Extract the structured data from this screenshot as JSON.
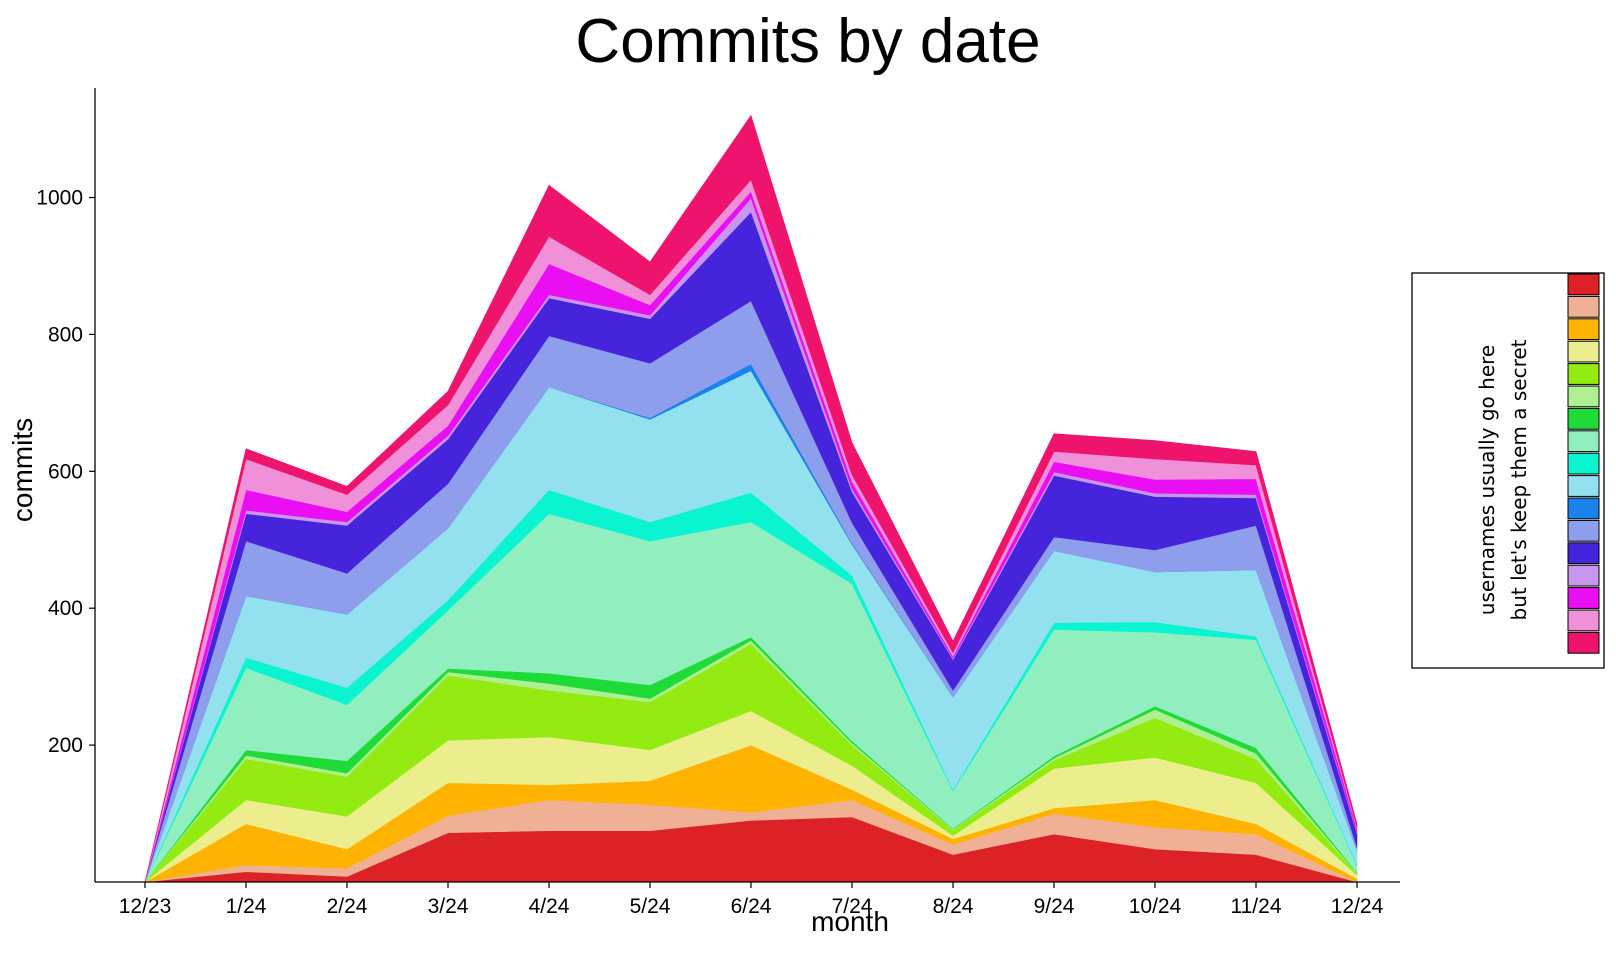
{
  "chart_data": {
    "type": "area",
    "title": "Commits by date",
    "xlabel": "month",
    "ylabel": "commits",
    "categories": [
      "12/23",
      "1/24",
      "2/24",
      "3/24",
      "4/24",
      "5/24",
      "6/24",
      "7/24",
      "8/24",
      "9/24",
      "10/24",
      "11/24",
      "12/24"
    ],
    "ylim": [
      0,
      1160
    ],
    "yticks": [
      200,
      400,
      600,
      800,
      1000
    ],
    "ytick_labels": [
      "200",
      "400",
      "600",
      "800",
      "1000"
    ],
    "grid": false,
    "stacked": true,
    "legend": {
      "title_line1": "usernames usually go here",
      "title_line2": "but let's keep them a secret",
      "position": "right"
    },
    "series": [
      {
        "color": "#dc2226",
        "values": [
          0,
          15,
          8,
          72,
          75,
          75,
          90,
          95,
          40,
          70,
          48,
          40,
          0
        ]
      },
      {
        "color": "#efb093",
        "values": [
          0,
          10,
          12,
          25,
          45,
          38,
          12,
          25,
          15,
          30,
          32,
          30,
          0
        ]
      },
      {
        "color": "#ffb300",
        "values": [
          0,
          60,
          28,
          48,
          22,
          35,
          98,
          15,
          8,
          8,
          40,
          15,
          5
        ]
      },
      {
        "color": "#ecee8d",
        "values": [
          0,
          35,
          48,
          62,
          70,
          45,
          50,
          35,
          5,
          58,
          62,
          60,
          5
        ]
      },
      {
        "color": "#94eb11",
        "values": [
          0,
          60,
          58,
          95,
          68,
          70,
          98,
          30,
          8,
          12,
          58,
          35,
          2
        ]
      },
      {
        "color": "#aef091",
        "values": [
          0,
          5,
          5,
          5,
          10,
          5,
          5,
          3,
          1,
          3,
          12,
          8,
          1
        ]
      },
      {
        "color": "#1fdb38",
        "values": [
          0,
          8,
          18,
          5,
          15,
          20,
          5,
          3,
          1,
          3,
          5,
          8,
          1
        ]
      },
      {
        "color": "#91eebe",
        "values": [
          0,
          120,
          82,
          85,
          233,
          210,
          168,
          230,
          55,
          185,
          108,
          158,
          10
        ]
      },
      {
        "color": "#0af4d2",
        "values": [
          0,
          15,
          25,
          15,
          35,
          28,
          43,
          12,
          2,
          10,
          15,
          5,
          2
        ]
      },
      {
        "color": "#93e1ee",
        "values": [
          0,
          90,
          107,
          105,
          150,
          150,
          178,
          45,
          135,
          105,
          73,
          97,
          20
        ]
      },
      {
        "color": "#1b82ec",
        "values": [
          0,
          0,
          0,
          0,
          0,
          2,
          10,
          2,
          0,
          0,
          0,
          0,
          0
        ]
      },
      {
        "color": "#8f9eec",
        "values": [
          0,
          80,
          60,
          65,
          75,
          80,
          92,
          30,
          10,
          20,
          32,
          65,
          5
        ]
      },
      {
        "color": "#4524dc",
        "values": [
          0,
          40,
          70,
          65,
          55,
          65,
          130,
          45,
          45,
          90,
          78,
          40,
          20
        ]
      },
      {
        "color": "#c796ef",
        "values": [
          0,
          5,
          5,
          5,
          5,
          5,
          20,
          5,
          2,
          5,
          5,
          5,
          2
        ]
      },
      {
        "color": "#ea0ef3",
        "values": [
          0,
          30,
          15,
          15,
          45,
          15,
          10,
          10,
          3,
          15,
          20,
          23,
          5
        ]
      },
      {
        "color": "#ef90d9",
        "values": [
          0,
          45,
          25,
          30,
          40,
          15,
          17,
          10,
          5,
          15,
          30,
          20,
          2
        ]
      },
      {
        "color": "#ee146e",
        "values": [
          0,
          15,
          12,
          20,
          75,
          48,
          94,
          47,
          17,
          26,
          27,
          20,
          5
        ]
      }
    ]
  }
}
